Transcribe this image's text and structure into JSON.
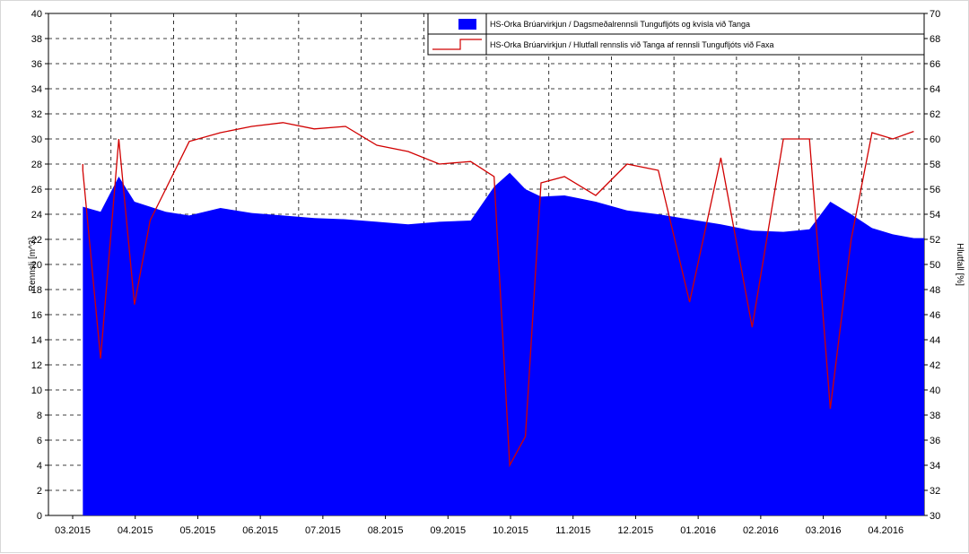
{
  "chart_data": {
    "type": "area",
    "xlabel": "",
    "ylabel": "Rennsli [m^3]",
    "y2label": "Hlutfall [%]",
    "ylim": [
      0,
      40
    ],
    "y2lim": [
      30,
      70
    ],
    "y_ticks": [
      0,
      2,
      4,
      6,
      8,
      10,
      12,
      14,
      16,
      18,
      20,
      22,
      24,
      26,
      28,
      30,
      32,
      34,
      36,
      38,
      40
    ],
    "y2_ticks": [
      30,
      32,
      34,
      36,
      38,
      40,
      42,
      44,
      46,
      48,
      50,
      52,
      54,
      56,
      58,
      60,
      62,
      64,
      66,
      68,
      70
    ],
    "x_tick_labels": [
      "03.2015",
      "04.2015",
      "05.2015",
      "06.2015",
      "07.2015",
      "08.2015",
      "09.2015",
      "10.2015",
      "11.2015",
      "12.2015",
      "01.2016",
      "02.2016",
      "03.2016",
      "04.2016"
    ],
    "x_range_months": [
      0,
      14
    ],
    "grid": true,
    "legend_position": "top-right",
    "colors": {
      "flow": "#0000ff",
      "ratio": "#d10000",
      "grid": "#000000"
    },
    "series": [
      {
        "name": "HS-Orka Brúarvirkjun / Dagsmeðalrennsli Tungufljóts og kvísla við Tanga",
        "kind": "area",
        "axis": "left",
        "x": [
          "03.2015",
          "03.2015",
          "03.2015",
          "04.2015",
          "04.2015",
          "04.2015",
          "04.2015",
          "05.2015",
          "05.2015",
          "06.2015",
          "06.2015",
          "07.2015",
          "07.2015",
          "08.2015",
          "08.2015",
          "09.2015",
          "09.2015",
          "10.2015",
          "10.2015",
          "10.2015",
          "10.2015",
          "11.2015",
          "11.2015",
          "12.2015",
          "12.2015",
          "01.2016",
          "01.2016",
          "02.2016",
          "02.2016",
          "03.2016",
          "03.2016",
          "03.2016",
          "04.2016",
          "04.2016",
          "04.2016"
        ],
        "y": [
          25.2,
          24.6,
          24.2,
          27.0,
          25.0,
          24.6,
          24.2,
          23.9,
          24.5,
          24.1,
          23.9,
          23.7,
          23.6,
          23.4,
          23.2,
          23.4,
          23.5,
          26.2,
          27.3,
          26.0,
          25.4,
          25.5,
          25.0,
          24.3,
          24.0,
          23.6,
          23.2,
          22.7,
          22.6,
          22.8,
          25.0,
          24.0,
          22.9,
          22.4,
          22.1
        ]
      },
      {
        "name": "HS-Orka Brúarvirkjun / Hlutfall rennslis við Tanga af rennsli Tungufljóts við Faxa",
        "kind": "line",
        "axis": "right",
        "x": [
          "03.2015",
          "03.2015",
          "03.2015",
          "04.2015",
          "04.2015",
          "04.2015",
          "04.2015",
          "05.2015",
          "05.2015",
          "06.2015",
          "06.2015",
          "07.2015",
          "07.2015",
          "08.2015",
          "08.2015",
          "09.2015",
          "09.2015",
          "10.2015",
          "10.2015",
          "10.2015",
          "10.2015",
          "11.2015",
          "11.2015",
          "12.2015",
          "12.2015",
          "01.2016",
          "01.2016",
          "02.2016",
          "02.2016",
          "03.2016",
          "03.2016",
          "03.2016",
          "04.2016",
          "04.2016",
          "04.2016"
        ],
        "y": [
          58.0,
          57.5,
          42.5,
          60.0,
          46.8,
          53.5,
          56.0,
          59.8,
          60.5,
          61.0,
          61.3,
          60.8,
          61.0,
          59.5,
          59.0,
          58.0,
          58.2,
          57.0,
          34.0,
          36.3,
          56.5,
          57.0,
          55.5,
          58.0,
          57.5,
          47.0,
          58.5,
          45.0,
          60.0,
          60.0,
          38.5,
          52.0,
          60.5,
          60.0,
          60.6
        ]
      }
    ]
  }
}
